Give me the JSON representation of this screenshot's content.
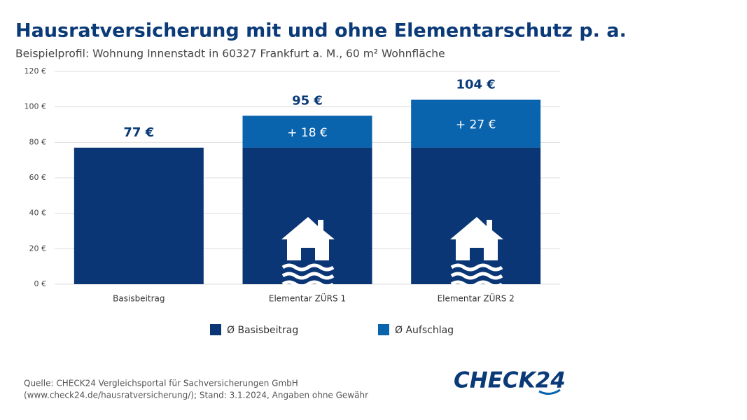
{
  "chart_data": {
    "type": "stacked_bar",
    "title": "Hausratversicherung mit und ohne Elementarschutz p. a.",
    "subtitle": "Beispielprofil: Wohnung Innenstadt in 60327 Frankfurt a. M., 60 m² Wohnfläche",
    "categories": [
      "Basisbeitrag",
      "Elementar ZÜRS 1",
      "Elementar ZÜRS 2"
    ],
    "series": [
      {
        "name": "Ø Basisbeitrag",
        "color": "#0b3675",
        "values": [
          77,
          77,
          77
        ]
      },
      {
        "name": "Ø Aufschlag",
        "color": "#0a64ad",
        "values": [
          null,
          18,
          27
        ],
        "value_labels": [
          null,
          "+ 18 €",
          "+ 27 €"
        ]
      }
    ],
    "total_labels": [
      "77 €",
      "95 €",
      "104 €"
    ],
    "ylim": [
      0,
      120
    ],
    "yticks": [
      {
        "value": 0,
        "label": "0 €"
      },
      {
        "value": 20,
        "label": "20 €"
      },
      {
        "value": 40,
        "label": "40 €"
      },
      {
        "value": 60,
        "label": "60 €"
      },
      {
        "value": 80,
        "label": "80 €"
      },
      {
        "value": 100,
        "label": "100 €"
      },
      {
        "value": 120,
        "label": "120 €"
      }
    ],
    "grid": true,
    "source": [
      "Quelle: CHECK24 Vergleichsportal für Sachversicherungen GmbH",
      "(www.check24.de/hausratversicherung/); Stand: 3.1.2024, Angaben ohne Gewähr"
    ],
    "logo": "CHECK24"
  }
}
